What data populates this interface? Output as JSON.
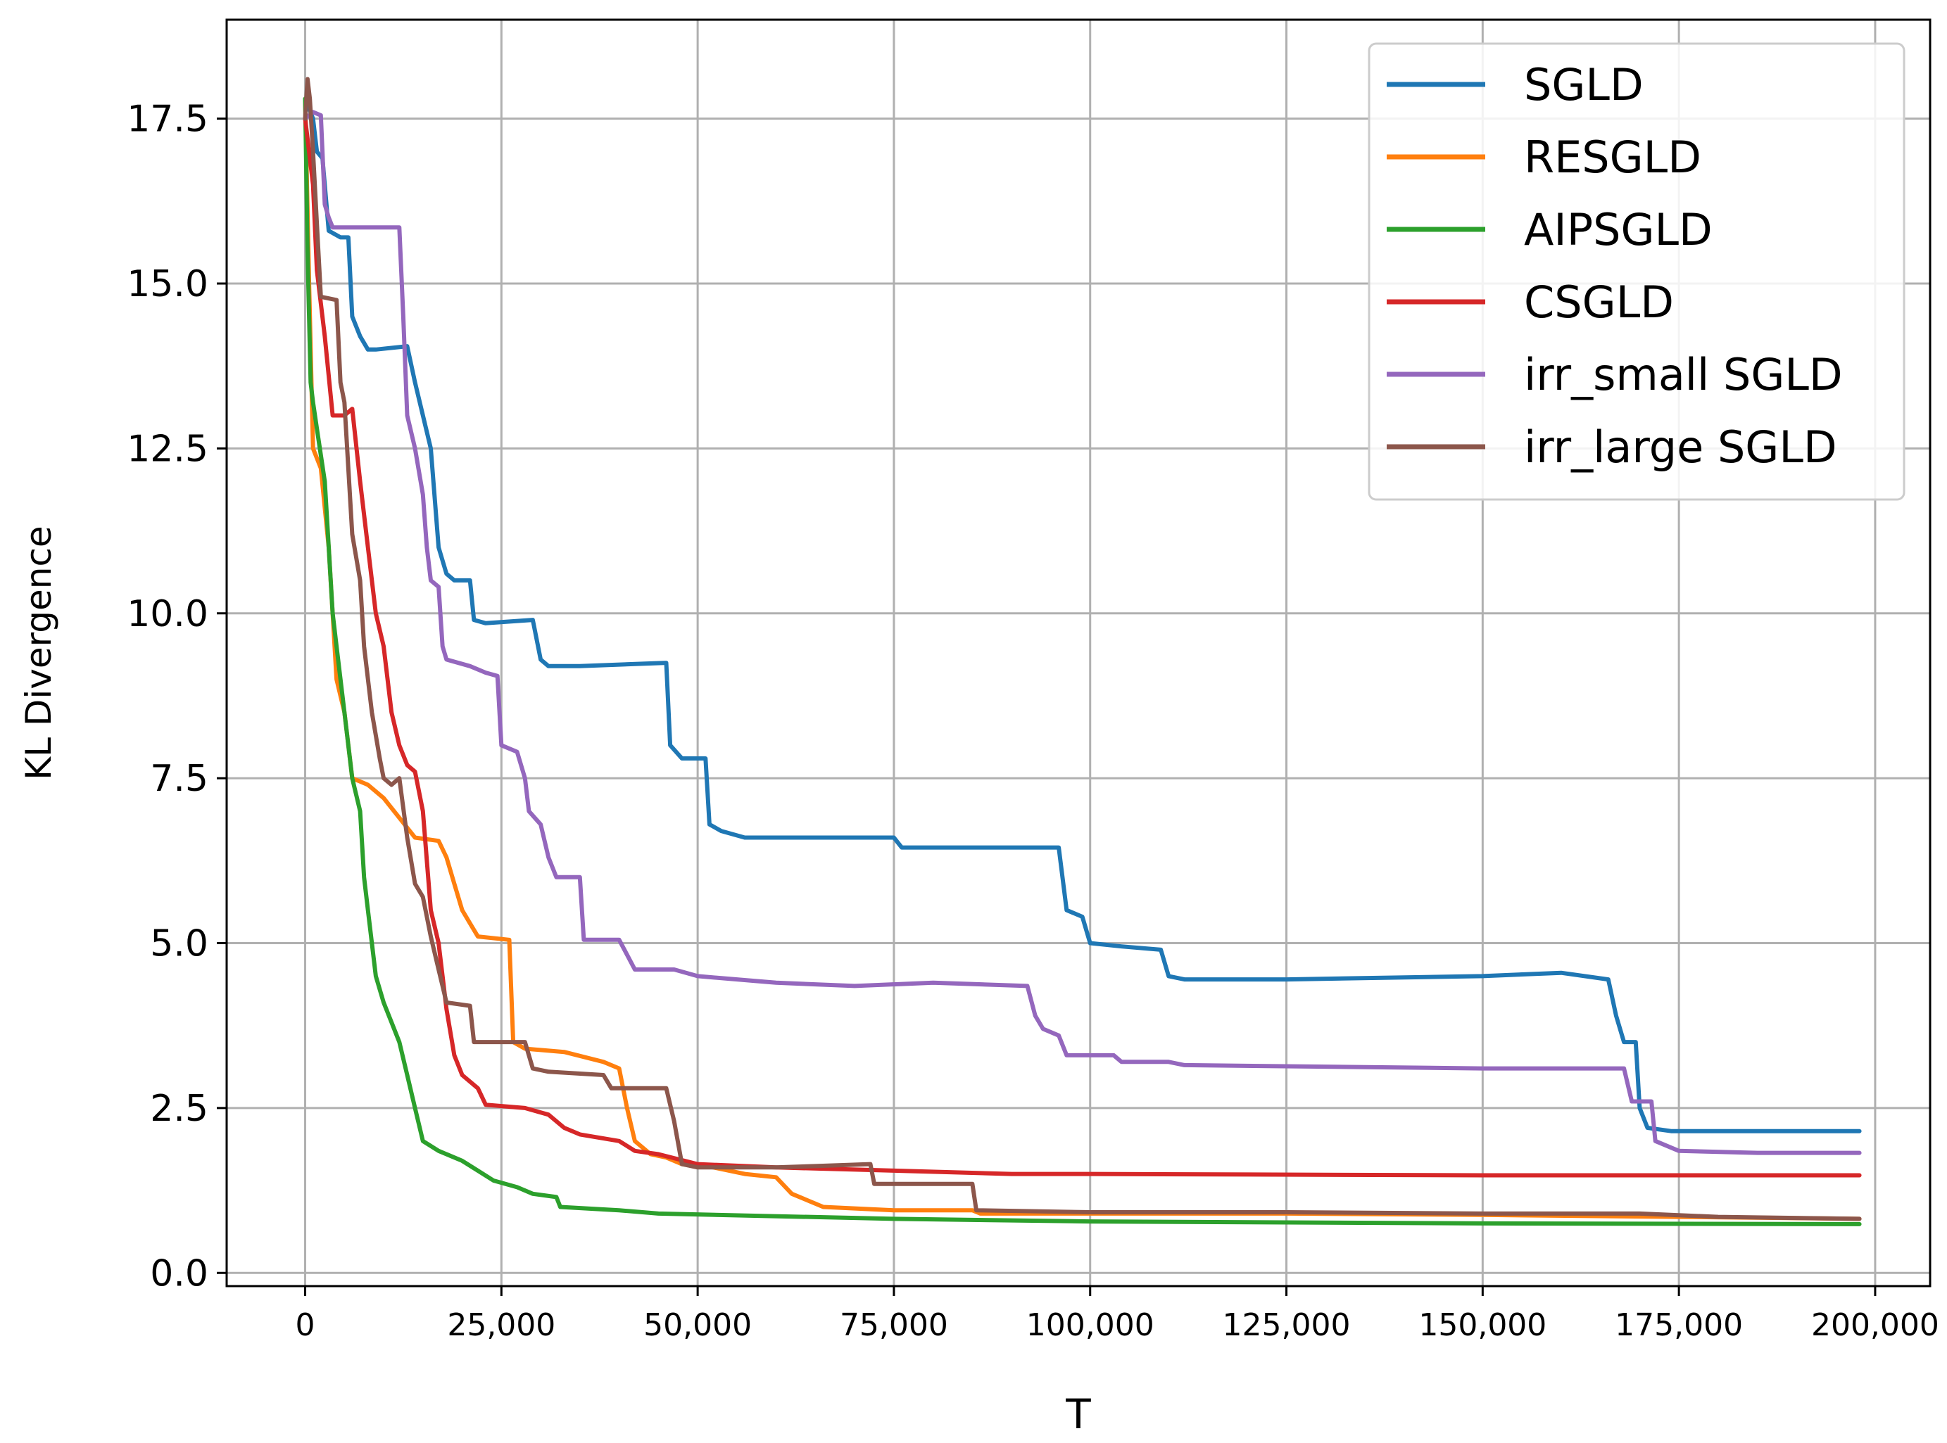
{
  "chart_data": {
    "type": "line",
    "title": "",
    "xlabel": "T",
    "ylabel": "KL Divergence",
    "xlim": [
      -10000,
      207000
    ],
    "ylim": [
      -0.2,
      19.0
    ],
    "grid": true,
    "legend_position": "top-right",
    "xticks": [
      {
        "value": 0,
        "label": "0"
      },
      {
        "value": 25000,
        "label": "25,000"
      },
      {
        "value": 50000,
        "label": "50,000"
      },
      {
        "value": 75000,
        "label": "75,000"
      },
      {
        "value": 100000,
        "label": "100,000"
      },
      {
        "value": 125000,
        "label": "125,000"
      },
      {
        "value": 150000,
        "label": "150,000"
      },
      {
        "value": 175000,
        "label": "175,000"
      },
      {
        "value": 200000,
        "label": "200,000"
      }
    ],
    "yticks": [
      {
        "value": 0,
        "label": "0.0"
      },
      {
        "value": 2.5,
        "label": "2.5"
      },
      {
        "value": 5,
        "label": "5.0"
      },
      {
        "value": 7.5,
        "label": "7.5"
      },
      {
        "value": 10,
        "label": "10.0"
      },
      {
        "value": 12.5,
        "label": "12.5"
      },
      {
        "value": 15,
        "label": "15.0"
      },
      {
        "value": 17.5,
        "label": "17.5"
      }
    ],
    "series": [
      {
        "name": "SGLD",
        "color": "#1f77b4",
        "points": [
          [
            0,
            17.8
          ],
          [
            1000,
            17.5
          ],
          [
            1500,
            17.0
          ],
          [
            2200,
            16.9
          ],
          [
            3000,
            15.8
          ],
          [
            4500,
            15.7
          ],
          [
            5500,
            15.7
          ],
          [
            6000,
            14.5
          ],
          [
            7000,
            14.2
          ],
          [
            8000,
            14.0
          ],
          [
            9000,
            14.0
          ],
          [
            13000,
            14.05
          ],
          [
            14000,
            13.5
          ],
          [
            15000,
            13.0
          ],
          [
            16000,
            12.5
          ],
          [
            17000,
            11.0
          ],
          [
            18000,
            10.6
          ],
          [
            19000,
            10.5
          ],
          [
            21000,
            10.5
          ],
          [
            21500,
            9.9
          ],
          [
            23000,
            9.85
          ],
          [
            29000,
            9.9
          ],
          [
            30000,
            9.3
          ],
          [
            31000,
            9.2
          ],
          [
            35000,
            9.2
          ],
          [
            46000,
            9.25
          ],
          [
            46500,
            8.0
          ],
          [
            48000,
            7.8
          ],
          [
            51000,
            7.8
          ],
          [
            51500,
            6.8
          ],
          [
            53000,
            6.7
          ],
          [
            56000,
            6.6
          ],
          [
            75000,
            6.6
          ],
          [
            76000,
            6.45
          ],
          [
            90000,
            6.45
          ],
          [
            96000,
            6.45
          ],
          [
            97000,
            5.5
          ],
          [
            99000,
            5.4
          ],
          [
            100000,
            5.0
          ],
          [
            104000,
            4.95
          ],
          [
            109000,
            4.9
          ],
          [
            110000,
            4.5
          ],
          [
            112000,
            4.45
          ],
          [
            125000,
            4.45
          ],
          [
            150000,
            4.5
          ],
          [
            160000,
            4.55
          ],
          [
            166000,
            4.45
          ],
          [
            167000,
            3.9
          ],
          [
            168000,
            3.5
          ],
          [
            169500,
            3.5
          ],
          [
            170000,
            2.5
          ],
          [
            171000,
            2.2
          ],
          [
            174000,
            2.15
          ],
          [
            180000,
            2.15
          ],
          [
            198000,
            2.15
          ]
        ]
      },
      {
        "name": "RESGLD",
        "color": "#ff7f0e",
        "points": [
          [
            0,
            17.8
          ],
          [
            500,
            15.0
          ],
          [
            1000,
            12.5
          ],
          [
            2000,
            12.2
          ],
          [
            3000,
            11.0
          ],
          [
            4000,
            9.0
          ],
          [
            5000,
            8.5
          ],
          [
            6000,
            7.5
          ],
          [
            8000,
            7.4
          ],
          [
            10000,
            7.2
          ],
          [
            12000,
            6.9
          ],
          [
            14000,
            6.6
          ],
          [
            17000,
            6.55
          ],
          [
            18000,
            6.3
          ],
          [
            19000,
            5.9
          ],
          [
            20000,
            5.5
          ],
          [
            21000,
            5.3
          ],
          [
            22000,
            5.1
          ],
          [
            26000,
            5.05
          ],
          [
            26500,
            3.5
          ],
          [
            28000,
            3.4
          ],
          [
            33000,
            3.35
          ],
          [
            38000,
            3.2
          ],
          [
            40000,
            3.1
          ],
          [
            41000,
            2.5
          ],
          [
            42000,
            2.0
          ],
          [
            44000,
            1.8
          ],
          [
            46000,
            1.75
          ],
          [
            48000,
            1.65
          ],
          [
            52000,
            1.6
          ],
          [
            56000,
            1.5
          ],
          [
            60000,
            1.45
          ],
          [
            62000,
            1.2
          ],
          [
            66000,
            1.0
          ],
          [
            75000,
            0.95
          ],
          [
            85000,
            0.95
          ],
          [
            86000,
            0.9
          ],
          [
            100000,
            0.9
          ],
          [
            125000,
            0.9
          ],
          [
            150000,
            0.88
          ],
          [
            175000,
            0.85
          ],
          [
            198000,
            0.82
          ]
        ]
      },
      {
        "name": "AIPSGLD",
        "color": "#2ca02c",
        "points": [
          [
            0,
            17.8
          ],
          [
            300,
            15.5
          ],
          [
            700,
            13.5
          ],
          [
            1000,
            13.2
          ],
          [
            1500,
            12.8
          ],
          [
            2500,
            12.0
          ],
          [
            3000,
            11.0
          ],
          [
            3500,
            10.0
          ],
          [
            4000,
            9.5
          ],
          [
            4500,
            9.0
          ],
          [
            5000,
            8.5
          ],
          [
            6000,
            7.5
          ],
          [
            7000,
            7.0
          ],
          [
            7500,
            6.0
          ],
          [
            8000,
            5.5
          ],
          [
            8500,
            5.0
          ],
          [
            9000,
            4.5
          ],
          [
            10000,
            4.1
          ],
          [
            11000,
            3.8
          ],
          [
            12000,
            3.5
          ],
          [
            13000,
            3.0
          ],
          [
            14000,
            2.5
          ],
          [
            15000,
            2.0
          ],
          [
            17000,
            1.85
          ],
          [
            20000,
            1.7
          ],
          [
            22000,
            1.55
          ],
          [
            24000,
            1.4
          ],
          [
            27000,
            1.3
          ],
          [
            29000,
            1.2
          ],
          [
            32000,
            1.15
          ],
          [
            32500,
            1.0
          ],
          [
            40000,
            0.95
          ],
          [
            45000,
            0.9
          ],
          [
            75000,
            0.82
          ],
          [
            100000,
            0.78
          ],
          [
            150000,
            0.75
          ],
          [
            198000,
            0.74
          ]
        ]
      },
      {
        "name": "CSGLD",
        "color": "#d62728",
        "points": [
          [
            0,
            17.5
          ],
          [
            1000,
            16.5
          ],
          [
            1500,
            15.2
          ],
          [
            2500,
            14.2
          ],
          [
            3500,
            13.0
          ],
          [
            5000,
            13.0
          ],
          [
            6000,
            13.1
          ],
          [
            7000,
            12.0
          ],
          [
            8000,
            11.0
          ],
          [
            9000,
            10.0
          ],
          [
            10000,
            9.5
          ],
          [
            11000,
            8.5
          ],
          [
            12000,
            8.0
          ],
          [
            13000,
            7.7
          ],
          [
            14000,
            7.6
          ],
          [
            15000,
            7.0
          ],
          [
            16000,
            5.5
          ],
          [
            17000,
            5.0
          ],
          [
            18000,
            4.0
          ],
          [
            19000,
            3.3
          ],
          [
            20000,
            3.0
          ],
          [
            22000,
            2.8
          ],
          [
            23000,
            2.55
          ],
          [
            28000,
            2.5
          ],
          [
            31000,
            2.4
          ],
          [
            33000,
            2.2
          ],
          [
            35000,
            2.1
          ],
          [
            40000,
            2.0
          ],
          [
            42000,
            1.85
          ],
          [
            45000,
            1.8
          ],
          [
            50000,
            1.65
          ],
          [
            60000,
            1.6
          ],
          [
            75000,
            1.55
          ],
          [
            90000,
            1.5
          ],
          [
            100000,
            1.5
          ],
          [
            150000,
            1.48
          ],
          [
            198000,
            1.48
          ]
        ]
      },
      {
        "name": "irr_small SGLD",
        "color": "#9467bd",
        "points": [
          [
            0,
            17.5
          ],
          [
            1000,
            17.6
          ],
          [
            2000,
            17.55
          ],
          [
            2500,
            16.2
          ],
          [
            3000,
            16.0
          ],
          [
            3500,
            15.85
          ],
          [
            8000,
            15.85
          ],
          [
            12000,
            15.85
          ],
          [
            12500,
            14.5
          ],
          [
            13000,
            13.0
          ],
          [
            14000,
            12.5
          ],
          [
            15000,
            11.8
          ],
          [
            15500,
            11.0
          ],
          [
            16000,
            10.5
          ],
          [
            17000,
            10.4
          ],
          [
            17500,
            9.5
          ],
          [
            18000,
            9.3
          ],
          [
            21000,
            9.2
          ],
          [
            23000,
            9.1
          ],
          [
            24500,
            9.05
          ],
          [
            25000,
            8.0
          ],
          [
            27000,
            7.9
          ],
          [
            28000,
            7.5
          ],
          [
            28500,
            7.0
          ],
          [
            30000,
            6.8
          ],
          [
            31000,
            6.3
          ],
          [
            32000,
            6.0
          ],
          [
            35000,
            6.0
          ],
          [
            35500,
            5.05
          ],
          [
            40000,
            5.05
          ],
          [
            42000,
            4.6
          ],
          [
            47000,
            4.6
          ],
          [
            50000,
            4.5
          ],
          [
            60000,
            4.4
          ],
          [
            70000,
            4.35
          ],
          [
            80000,
            4.4
          ],
          [
            92000,
            4.35
          ],
          [
            93000,
            3.9
          ],
          [
            94000,
            3.7
          ],
          [
            96000,
            3.6
          ],
          [
            97000,
            3.3
          ],
          [
            103000,
            3.3
          ],
          [
            104000,
            3.2
          ],
          [
            110000,
            3.2
          ],
          [
            112000,
            3.15
          ],
          [
            150000,
            3.1
          ],
          [
            160000,
            3.1
          ],
          [
            168000,
            3.1
          ],
          [
            169000,
            2.6
          ],
          [
            171500,
            2.6
          ],
          [
            172000,
            2.0
          ],
          [
            175000,
            1.85
          ],
          [
            185000,
            1.82
          ],
          [
            198000,
            1.82
          ]
        ]
      },
      {
        "name": "irr_large SGLD",
        "color": "#8c564b",
        "points": [
          [
            0,
            17.5
          ],
          [
            300,
            18.1
          ],
          [
            600,
            17.8
          ],
          [
            1000,
            17.0
          ],
          [
            1500,
            15.9
          ],
          [
            2000,
            14.8
          ],
          [
            4000,
            14.75
          ],
          [
            4500,
            13.5
          ],
          [
            5000,
            13.2
          ],
          [
            6000,
            11.2
          ],
          [
            7000,
            10.5
          ],
          [
            7500,
            9.5
          ],
          [
            8500,
            8.5
          ],
          [
            9500,
            7.8
          ],
          [
            10000,
            7.5
          ],
          [
            11000,
            7.4
          ],
          [
            12000,
            7.5
          ],
          [
            13000,
            6.6
          ],
          [
            14000,
            5.9
          ],
          [
            15000,
            5.7
          ],
          [
            16000,
            5.1
          ],
          [
            17000,
            4.6
          ],
          [
            18000,
            4.1
          ],
          [
            21000,
            4.05
          ],
          [
            21500,
            3.5
          ],
          [
            24000,
            3.5
          ],
          [
            28000,
            3.5
          ],
          [
            29000,
            3.1
          ],
          [
            31000,
            3.05
          ],
          [
            38000,
            3.0
          ],
          [
            39000,
            2.8
          ],
          [
            46000,
            2.8
          ],
          [
            47000,
            2.3
          ],
          [
            48000,
            1.65
          ],
          [
            50000,
            1.6
          ],
          [
            60000,
            1.6
          ],
          [
            65000,
            1.62
          ],
          [
            72000,
            1.65
          ],
          [
            72500,
            1.35
          ],
          [
            85000,
            1.35
          ],
          [
            85500,
            0.95
          ],
          [
            100000,
            0.92
          ],
          [
            125000,
            0.92
          ],
          [
            150000,
            0.9
          ],
          [
            170000,
            0.9
          ],
          [
            180000,
            0.85
          ],
          [
            198000,
            0.82
          ]
        ]
      }
    ]
  }
}
